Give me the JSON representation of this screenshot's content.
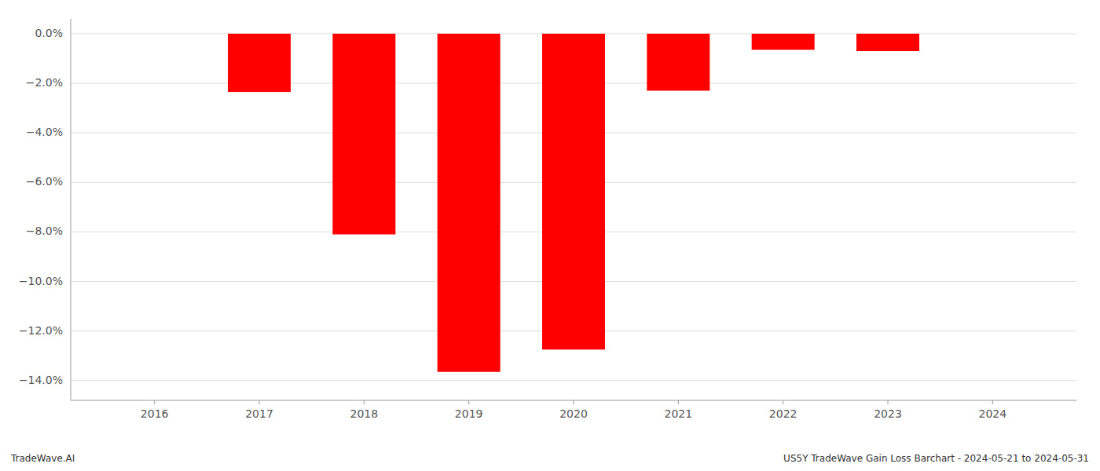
{
  "chart_data": {
    "type": "bar",
    "x": [
      2016,
      2017,
      2018,
      2019,
      2020,
      2021,
      2022,
      2023,
      2024
    ],
    "values": [
      0.0,
      -2.35,
      -8.1,
      -13.65,
      -12.75,
      -2.3,
      -0.65,
      -0.7,
      0.0
    ],
    "color": "#ff0000",
    "xlim": [
      2015.2,
      2024.8
    ],
    "xticks": [
      2016,
      2017,
      2018,
      2019,
      2020,
      2021,
      2022,
      2023,
      2024
    ],
    "ylim": [
      -14.8,
      0.6
    ],
    "yticks": [
      {
        "value": 0.0,
        "label": "0.0%"
      },
      {
        "value": -2.0,
        "label": "−2.0%"
      },
      {
        "value": -4.0,
        "label": "−4.0%"
      },
      {
        "value": -6.0,
        "label": "−6.0%"
      },
      {
        "value": -8.0,
        "label": "−8.0%"
      },
      {
        "value": -10.0,
        "label": "−10.0%"
      },
      {
        "value": -12.0,
        "label": "−12.0%"
      },
      {
        "value": -14.0,
        "label": "−14.0%"
      }
    ],
    "grid": true,
    "annotations": [
      "TradeWave.AI",
      "US5Y TradeWave Gain Loss Barchart - 2024-05-21 to 2024-05-31"
    ]
  }
}
